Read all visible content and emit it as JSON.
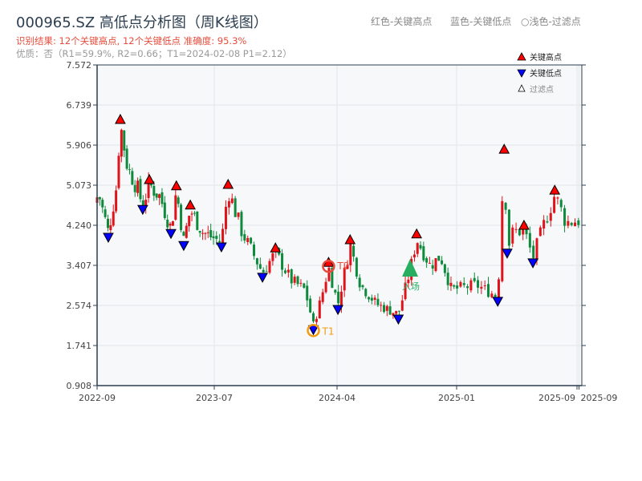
{
  "header": {
    "title": "000965.SZ 高低点分析图（周K线图）",
    "result_line": "识别结果: 12个关键高点, 12个关键低点  准确度: 95.3%",
    "quality_line": "优质：否（R1=59.9%, R2=0.66；T1=2024-02-08 P1=2.12）",
    "legend_red": "红色-关键高点",
    "legend_blue": "蓝色-关键低点",
    "legend_light": "○浅色-过滤点"
  },
  "colors": {
    "up": "#e0131a",
    "down": "#0e8a3c",
    "high_marker": "#ff0000",
    "low_marker": "#0000ff",
    "t1": "#f39c12",
    "t2": "#e74c3c",
    "entry": "#27ae60",
    "plot_bg": "#f6f8fa"
  },
  "chart_data": {
    "type": "candlestick",
    "xlabel": "",
    "ylabel": "",
    "ylim": [
      0.908,
      7.572
    ],
    "y_ticks": [
      "0.908",
      "1.741",
      "2.574",
      "3.407",
      "4.240",
      "5.073",
      "5.906",
      "6.739",
      "7.572"
    ],
    "x_ticks": [
      {
        "label": "2022-09",
        "date": "2022-09-01"
      },
      {
        "label": "2023-07",
        "date": "2023-07-01"
      },
      {
        "label": "2024-04",
        "date": "2024-04-01"
      },
      {
        "label": "2025-01",
        "date": "2025-01-01"
      },
      {
        "label": "2025-09",
        "date": "2025-09-01"
      },
      {
        "label": "2025-09",
        "date": "2025-09-05"
      }
    ],
    "grid": true,
    "legend_position": "top-right",
    "legend": {
      "high": "关键高点",
      "low": "关键低点",
      "filtered": "过滤点"
    },
    "price_path": [
      [
        "2022-08-25",
        4.7
      ],
      [
        "2022-09-05",
        4.9
      ],
      [
        "2022-09-30",
        4.09
      ],
      [
        "2022-10-20",
        5.0
      ],
      [
        "2022-10-31",
        6.34
      ],
      [
        "2022-11-20",
        5.4
      ],
      [
        "2022-12-05",
        5.2
      ],
      [
        "2022-12-28",
        4.67
      ],
      [
        "2023-01-14",
        5.09
      ],
      [
        "2023-02-10",
        4.84
      ],
      [
        "2023-03-11",
        4.17
      ],
      [
        "2023-03-25",
        4.96
      ],
      [
        "2023-04-13",
        3.92
      ],
      [
        "2023-04-30",
        4.56
      ],
      [
        "2023-06-01",
        4.1
      ],
      [
        "2023-07-17",
        3.89
      ],
      [
        "2023-08-01",
        4.99
      ],
      [
        "2023-09-01",
        4.1
      ],
      [
        "2023-10-17",
        3.26
      ],
      [
        "2023-11-15",
        3.67
      ],
      [
        "2023-12-20",
        3.1
      ],
      [
        "2024-01-20",
        2.9
      ],
      [
        "2024-02-08",
        2.17
      ],
      [
        "2024-02-25",
        2.7
      ],
      [
        "2024-03-13",
        3.37
      ],
      [
        "2024-04-03",
        2.59
      ],
      [
        "2024-05-01",
        3.84
      ],
      [
        "2024-05-25",
        3.0
      ],
      [
        "2024-07-01",
        2.6
      ],
      [
        "2024-08-20",
        2.39
      ],
      [
        "2024-09-16",
        3.3
      ],
      [
        "2024-10-01",
        3.96
      ],
      [
        "2024-11-01",
        3.4
      ],
      [
        "2024-11-25",
        3.6
      ],
      [
        "2024-12-20",
        2.9
      ],
      [
        "2025-02-10",
        3.0
      ],
      [
        "2025-03-25",
        2.76
      ],
      [
        "2025-04-07",
        5.72
      ],
      [
        "2025-04-13",
        3.76
      ],
      [
        "2025-04-25",
        4.1
      ],
      [
        "2025-05-17",
        4.14
      ],
      [
        "2025-06-04",
        3.56
      ],
      [
        "2025-07-01",
        4.4
      ],
      [
        "2025-07-18",
        4.87
      ],
      [
        "2025-08-10",
        4.3
      ],
      [
        "2025-09-05",
        4.35
      ]
    ],
    "key_highs": [
      [
        "2022-10-31",
        6.34
      ],
      [
        "2023-01-14",
        5.09
      ],
      [
        "2023-03-25",
        4.96
      ],
      [
        "2023-04-30",
        4.56
      ],
      [
        "2023-08-01",
        4.99
      ],
      [
        "2023-11-15",
        3.67
      ],
      [
        "2024-03-13",
        3.37
      ],
      [
        "2024-05-01",
        3.84
      ],
      [
        "2024-10-01",
        3.96
      ],
      [
        "2025-04-07",
        5.72
      ],
      [
        "2025-05-17",
        4.14
      ],
      [
        "2025-07-18",
        4.87
      ]
    ],
    "key_lows": [
      [
        "2022-09-30",
        4.09
      ],
      [
        "2022-12-28",
        4.67
      ],
      [
        "2023-03-11",
        4.17
      ],
      [
        "2023-04-13",
        3.92
      ],
      [
        "2023-07-17",
        3.89
      ],
      [
        "2023-10-17",
        3.26
      ],
      [
        "2024-02-08",
        2.17
      ],
      [
        "2024-04-03",
        2.59
      ],
      [
        "2024-08-20",
        2.39
      ],
      [
        "2025-03-25",
        2.76
      ],
      [
        "2025-04-13",
        3.76
      ],
      [
        "2025-06-04",
        3.56
      ]
    ],
    "annotations": [
      {
        "label": "T1",
        "date": "2024-02-08",
        "price": 2.12,
        "kind": "low"
      },
      {
        "label": "T2",
        "date": "2024-03-13",
        "price": 3.37,
        "kind": "high"
      },
      {
        "label": "入场",
        "date": "2024-09-16",
        "price": 3.34,
        "kind": "entry"
      }
    ]
  }
}
